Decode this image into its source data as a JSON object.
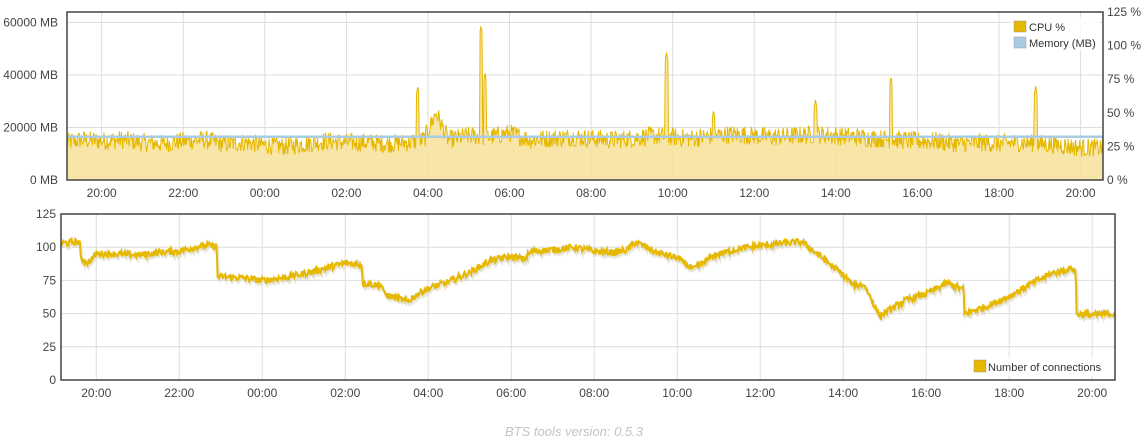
{
  "colors": {
    "cpu_line": "#e6b800",
    "cpu_fill": "#f7e29a",
    "memory_line": "#a9cbe6",
    "connections_line": "#e6b800",
    "grid": "#dddddd",
    "frame": "#444444"
  },
  "footer": {
    "text": "BTS tools version: 0.5.3"
  },
  "chart_data": [
    {
      "type": "line",
      "legend": {
        "position": "top-right",
        "entries": [
          "CPU %",
          "Memory (MB)"
        ]
      },
      "x_ticks": [
        "20:00",
        "22:00",
        "00:00",
        "02:00",
        "04:00",
        "06:00",
        "08:00",
        "10:00",
        "12:00",
        "14:00",
        "16:00",
        "18:00",
        "20:00"
      ],
      "x_range_hours": [
        19.15,
        44.55
      ],
      "y_left": {
        "ticks": [
          "0 MB",
          "20000 MB",
          "40000 MB",
          "60000 MB"
        ],
        "range": [
          0,
          64000
        ]
      },
      "y_right": {
        "ticks": [
          "0 %",
          "25 %",
          "50 %",
          "75 %",
          "100 %",
          "125 %"
        ],
        "range": [
          0,
          125
        ]
      },
      "grid": true,
      "series": [
        {
          "name": "CPU %",
          "axis": "right",
          "x": [
            19.15,
            19.5,
            20,
            20.5,
            21,
            21.5,
            22,
            22.5,
            23,
            23.5,
            24,
            24.5,
            25,
            25.5,
            26,
            26.5,
            27,
            27.5,
            27.9,
            28.2,
            28.5,
            29,
            29.5,
            30,
            30.5,
            31,
            31.5,
            32,
            32.5,
            33,
            33.5,
            34,
            34.5,
            35,
            35.5,
            36,
            36.5,
            37,
            37.5,
            38,
            38.5,
            39,
            39.5,
            40,
            40.5,
            41,
            41.5,
            42,
            42.5,
            43,
            43.5,
            44,
            44.55
          ],
          "values": [
            28,
            30,
            29,
            30,
            28,
            27,
            29,
            30,
            27,
            28,
            26,
            25,
            27,
            29,
            28,
            28,
            27,
            28,
            30,
            50,
            30,
            33,
            32,
            35,
            30,
            31,
            32,
            31,
            30,
            31,
            33,
            32,
            31,
            33,
            34,
            33,
            32,
            33,
            34,
            33,
            32,
            31,
            30,
            29,
            29,
            27,
            28,
            27,
            28,
            27,
            26,
            24,
            24
          ],
          "spikes": [
            {
              "x": 27.75,
              "value": 70
            },
            {
              "x": 29.3,
              "value": 115
            },
            {
              "x": 29.4,
              "value": 80
            },
            {
              "x": 33.85,
              "value": 95
            },
            {
              "x": 35.0,
              "value": 52
            },
            {
              "x": 37.5,
              "value": 60
            },
            {
              "x": 39.35,
              "value": 77
            },
            {
              "x": 42.9,
              "value": 70
            }
          ]
        },
        {
          "name": "Memory (MB)",
          "axis": "left",
          "x": [
            19.15,
            44.55
          ],
          "values": [
            16500,
            16500
          ]
        }
      ]
    },
    {
      "type": "line",
      "legend": {
        "position": "bottom-right",
        "entries": [
          "Number of connections"
        ]
      },
      "x_ticks": [
        "20:00",
        "22:00",
        "00:00",
        "02:00",
        "04:00",
        "06:00",
        "08:00",
        "10:00",
        "12:00",
        "14:00",
        "16:00",
        "18:00",
        "20:00"
      ],
      "x_range_hours": [
        19.15,
        44.55
      ],
      "y": {
        "ticks": [
          "0",
          "25",
          "50",
          "75",
          "100",
          "125"
        ],
        "range": [
          0,
          125
        ]
      },
      "grid": true,
      "series": [
        {
          "name": "Number of connections",
          "x": [
            19.15,
            19.6,
            19.62,
            19.8,
            20,
            20.5,
            21,
            21.5,
            22,
            22.5,
            22.9,
            22.92,
            23.5,
            24,
            24.5,
            25,
            25.5,
            26,
            26.4,
            26.42,
            26.9,
            26.92,
            27.5,
            27.8,
            28,
            28.5,
            29,
            29.5,
            30,
            30.3,
            30.5,
            31,
            31.5,
            32,
            32.5,
            32.8,
            33,
            33.5,
            34,
            34.4,
            34.42,
            34.9,
            35.5,
            36,
            36.5,
            37,
            37.5,
            38,
            38.2,
            38.22,
            38.5,
            38.9,
            38.92,
            39.5,
            40,
            40.5,
            40.9,
            40.92,
            41.5,
            42,
            42.5,
            43,
            43.5,
            43.6,
            43.62,
            44,
            44.55
          ],
          "values": [
            103,
            104,
            92,
            88,
            95,
            95,
            94,
            96,
            97,
            101,
            101,
            78,
            77,
            75,
            77,
            80,
            84,
            88,
            87,
            73,
            71,
            65,
            59,
            66,
            69,
            74,
            81,
            90,
            93,
            91,
            97,
            98,
            100,
            97,
            96,
            98,
            104,
            96,
            92,
            83,
            84,
            94,
            99,
            101,
            103,
            104,
            92,
            79,
            73,
            71,
            72,
            47,
            49,
            60,
            65,
            73,
            68,
            50,
            56,
            63,
            72,
            80,
            84,
            83,
            50,
            49,
            50
          ]
        }
      ]
    }
  ]
}
